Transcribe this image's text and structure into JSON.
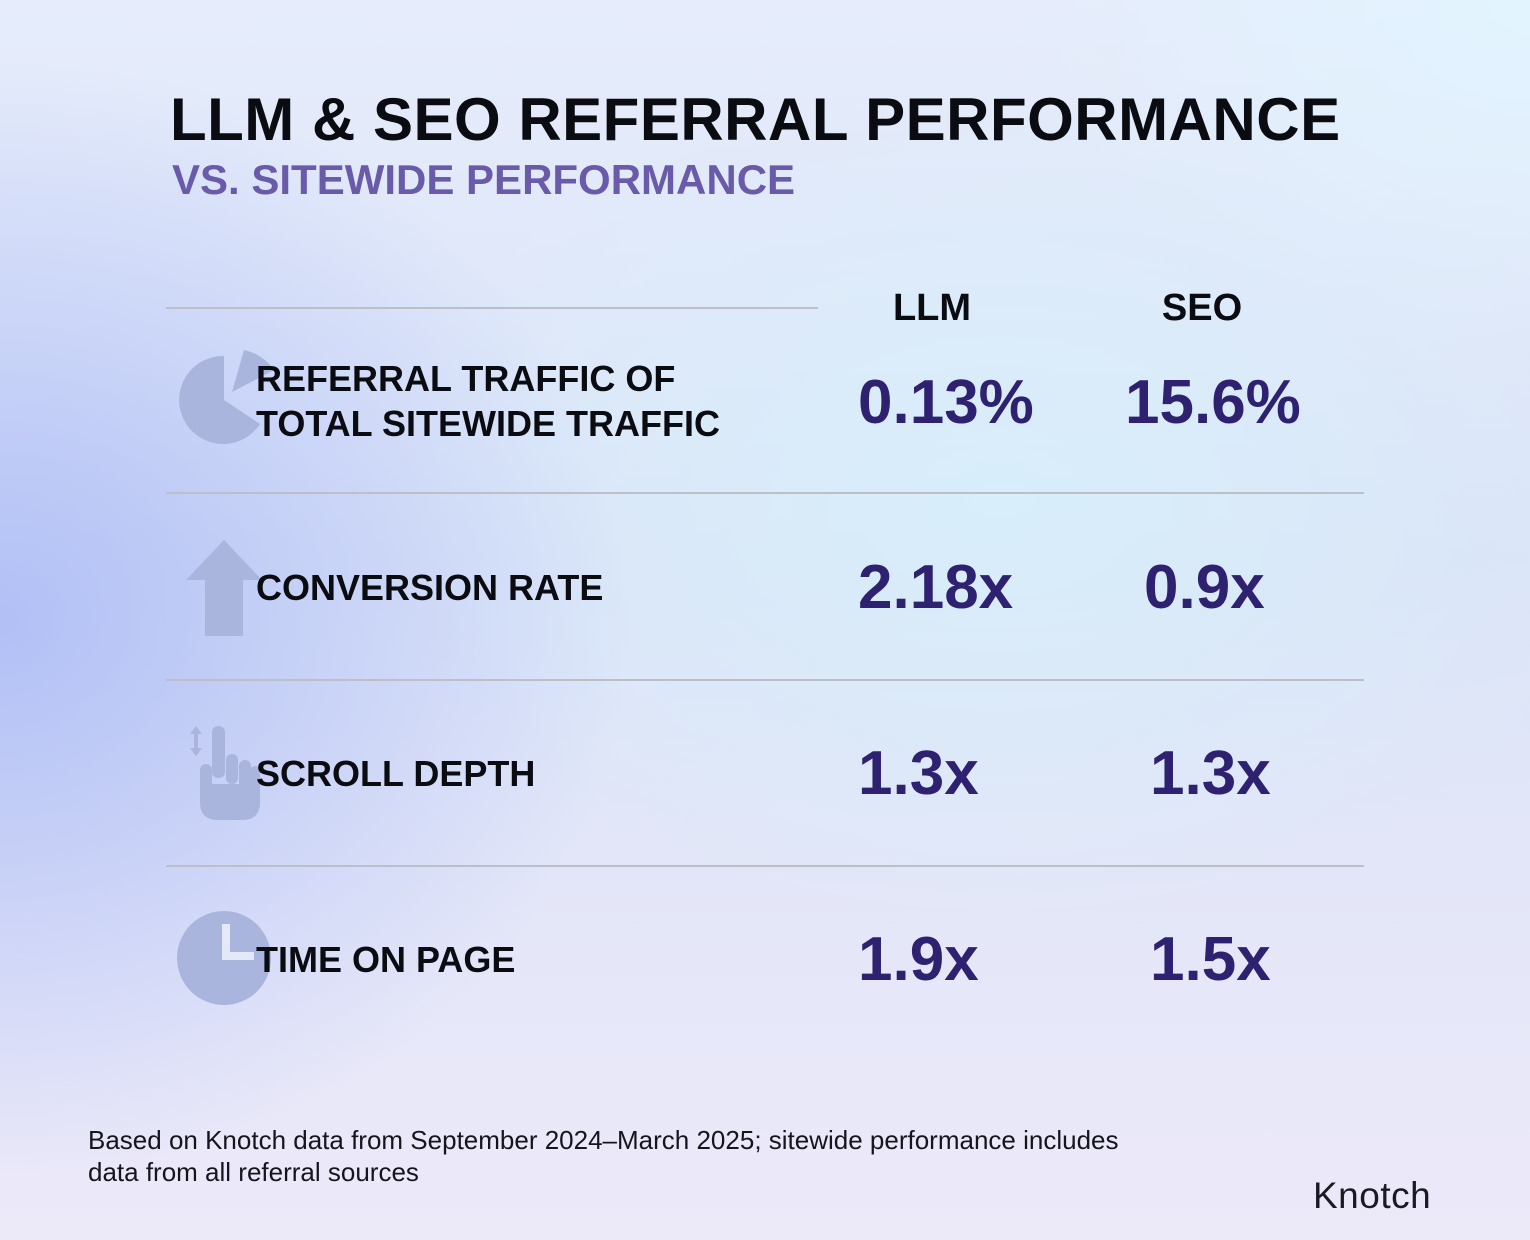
{
  "header": {
    "title": "LLM & SEO REFERRAL PERFORMANCE",
    "subtitle": "VS. SITEWIDE PERFORMANCE"
  },
  "table": {
    "columns": [
      "LLM",
      "SEO"
    ],
    "rows": [
      {
        "icon": "pie-chart-icon",
        "label": "REFERRAL TRAFFIC OF\nTOTAL SITEWIDE TRAFFIC",
        "llm": "0.13%",
        "seo": "15.6%"
      },
      {
        "icon": "up-arrow-icon",
        "label": "CONVERSION RATE",
        "llm": "2.18x",
        "seo": "0.9x"
      },
      {
        "icon": "scroll-hand-icon",
        "label": "SCROLL DEPTH",
        "llm": "1.3x",
        "seo": "1.3x"
      },
      {
        "icon": "clock-icon",
        "label": "TIME ON PAGE",
        "llm": "1.9x",
        "seo": "1.5x"
      }
    ]
  },
  "footnote": "Based on Knotch data from September 2024–March 2025; sitewide performance includes data from all referral sources",
  "brand": "Knotch",
  "colors": {
    "value": "#2d2170",
    "subtitle": "#6a5aaa",
    "icon": "#a9b5dc"
  }
}
